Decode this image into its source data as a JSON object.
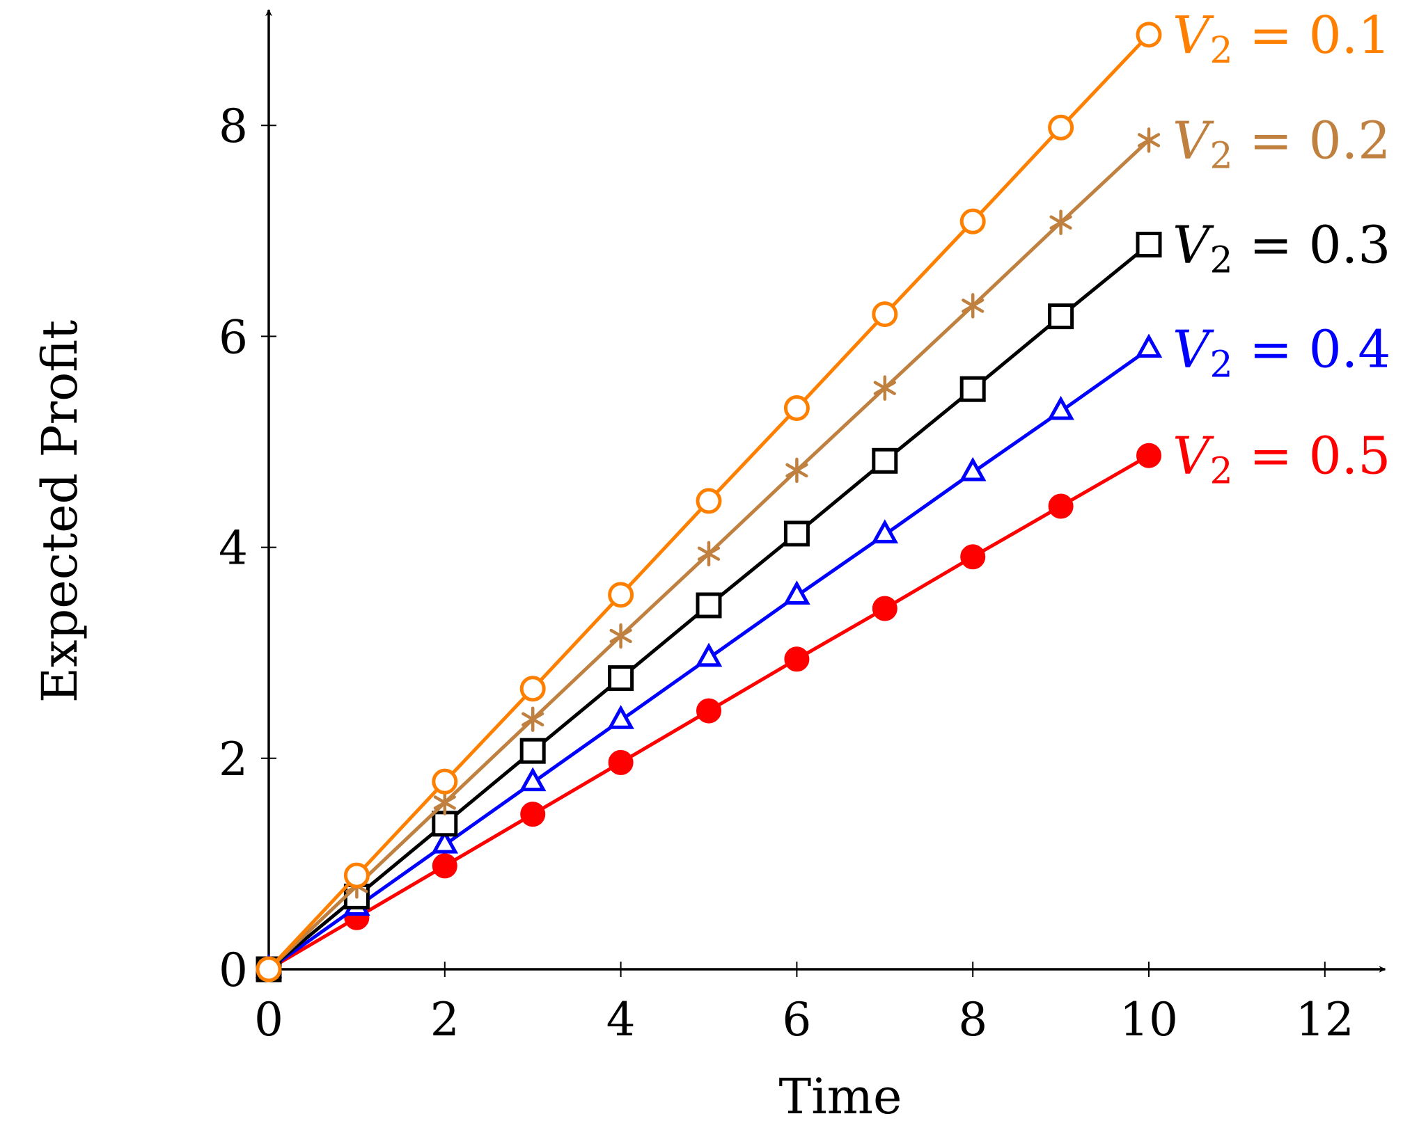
{
  "chart_data": {
    "type": "line",
    "xlabel": "Time",
    "ylabel": "Expected Profit",
    "xlim": [
      0,
      12.4
    ],
    "ylim": [
      0,
      8.95
    ],
    "x_ticks": [
      0,
      2,
      4,
      6,
      8,
      10,
      12
    ],
    "y_ticks": [
      0,
      2,
      4,
      6,
      8
    ],
    "x": [
      0,
      1,
      2,
      3,
      4,
      5,
      6,
      7,
      8,
      9,
      10
    ],
    "legend_position": "inline at line ends (right)",
    "series": [
      {
        "name": "V2 = 0.1",
        "label_var": "V",
        "label_sub": "2",
        "label_rest": " = 0.1",
        "color": "#ff8000",
        "marker": "open-circle",
        "values": [
          0,
          0.89,
          1.78,
          2.66,
          3.55,
          4.44,
          5.32,
          6.21,
          7.09,
          7.98,
          8.86
        ]
      },
      {
        "name": "V2 = 0.2",
        "label_var": "V",
        "label_sub": "2",
        "label_rest": " = 0.2",
        "color": "#bf8040",
        "marker": "asterisk",
        "values": [
          0,
          0.79,
          1.58,
          2.37,
          3.16,
          3.94,
          4.73,
          5.51,
          6.29,
          7.08,
          7.86
        ]
      },
      {
        "name": "V2 = 0.3",
        "label_var": "V",
        "label_sub": "2",
        "label_rest": " = 0.3",
        "color": "#000000",
        "marker": "open-square",
        "values": [
          0,
          0.69,
          1.38,
          2.07,
          2.76,
          3.45,
          4.13,
          4.82,
          5.5,
          6.19,
          6.87
        ]
      },
      {
        "name": "V2 = 0.4",
        "label_var": "V",
        "label_sub": "2",
        "label_rest": " = 0.4",
        "color": "#0000ff",
        "marker": "open-triangle",
        "values": [
          0,
          0.59,
          1.18,
          1.77,
          2.36,
          2.95,
          3.54,
          4.12,
          4.71,
          5.29,
          5.88
        ]
      },
      {
        "name": "V2 = 0.5",
        "label_var": "V",
        "label_sub": "2",
        "label_rest": " = 0.5",
        "color": "#ff0000",
        "marker": "filled-circle",
        "values": [
          0,
          0.49,
          0.98,
          1.47,
          1.96,
          2.45,
          2.94,
          3.42,
          3.91,
          4.39,
          4.87
        ]
      }
    ]
  }
}
